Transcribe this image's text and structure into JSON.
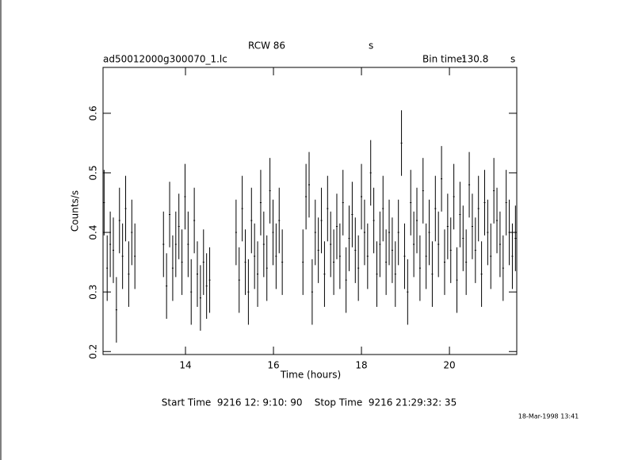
{
  "chart_data": {
    "type": "errorbar",
    "title": "RCW 86",
    "title_unit": "s",
    "file_name": "ad50012000g300070_1.lc",
    "bin_time_label": "Bin time:",
    "bin_time": 130.8,
    "bin_time_unit": "s",
    "x_label": "Time (hours)",
    "y_label": "Counts/s",
    "footer": "Start Time  9216 12: 9:10: 90    Stop Time  9216 21:29:32: 35",
    "date": "18-Mar-1998 13:41",
    "color": "#000000",
    "xlim": [
      12.126,
      21.53
    ],
    "ylim": [
      0.195,
      0.677
    ],
    "xticks": [
      14,
      16,
      18,
      20
    ],
    "yticks": [
      0.2,
      0.3,
      0.4,
      0.5,
      0.6
    ],
    "error": 0.055,
    "x": [
      12.15,
      12.22,
      12.29,
      12.36,
      12.43,
      12.5,
      12.57,
      12.64,
      12.71,
      12.78,
      12.85,
      13.5,
      13.57,
      13.64,
      13.71,
      13.78,
      13.85,
      13.92,
      13.99,
      14.06,
      14.13,
      14.2,
      14.27,
      14.34,
      14.41,
      14.48,
      14.55,
      15.15,
      15.22,
      15.29,
      15.36,
      15.43,
      15.5,
      15.57,
      15.64,
      15.71,
      15.78,
      15.85,
      15.92,
      15.99,
      16.06,
      16.13,
      16.2,
      16.67,
      16.74,
      16.81,
      16.88,
      16.95,
      17.02,
      17.09,
      17.16,
      17.23,
      17.3,
      17.37,
      17.44,
      17.51,
      17.58,
      17.65,
      17.72,
      17.79,
      17.86,
      17.93,
      18.0,
      18.07,
      18.14,
      18.21,
      18.28,
      18.35,
      18.42,
      18.49,
      18.56,
      18.63,
      18.7,
      18.77,
      18.84,
      18.91,
      18.98,
      19.05,
      19.12,
      19.19,
      19.26,
      19.33,
      19.4,
      19.47,
      19.54,
      19.61,
      19.68,
      19.75,
      19.82,
      19.89,
      19.96,
      20.03,
      20.1,
      20.17,
      20.24,
      20.31,
      20.38,
      20.45,
      20.52,
      20.59,
      20.66,
      20.73,
      20.8,
      20.87,
      20.94,
      21.01,
      21.08,
      21.15,
      21.22,
      21.29,
      21.36,
      21.43,
      21.5
    ],
    "values": [
      0.45,
      0.34,
      0.38,
      0.37,
      0.27,
      0.42,
      0.36,
      0.44,
      0.33,
      0.4,
      0.36,
      0.38,
      0.31,
      0.43,
      0.34,
      0.38,
      0.41,
      0.35,
      0.46,
      0.38,
      0.3,
      0.42,
      0.33,
      0.29,
      0.35,
      0.31,
      0.32,
      0.4,
      0.32,
      0.44,
      0.35,
      0.3,
      0.42,
      0.36,
      0.33,
      0.45,
      0.38,
      0.34,
      0.47,
      0.4,
      0.36,
      0.42,
      0.35,
      0.35,
      0.46,
      0.48,
      0.3,
      0.4,
      0.37,
      0.42,
      0.33,
      0.44,
      0.38,
      0.35,
      0.41,
      0.36,
      0.45,
      0.32,
      0.39,
      0.43,
      0.37,
      0.34,
      0.46,
      0.4,
      0.36,
      0.5,
      0.42,
      0.33,
      0.38,
      0.44,
      0.35,
      0.4,
      0.37,
      0.33,
      0.4,
      0.55,
      0.36,
      0.3,
      0.45,
      0.38,
      0.42,
      0.34,
      0.47,
      0.36,
      0.4,
      0.33,
      0.44,
      0.38,
      0.49,
      0.35,
      0.41,
      0.37,
      0.46,
      0.32,
      0.43,
      0.39,
      0.35,
      0.48,
      0.41,
      0.37,
      0.44,
      0.33,
      0.45,
      0.4,
      0.36,
      0.47,
      0.42,
      0.38,
      0.34,
      0.45,
      0.4,
      0.36,
      0.39
    ]
  }
}
